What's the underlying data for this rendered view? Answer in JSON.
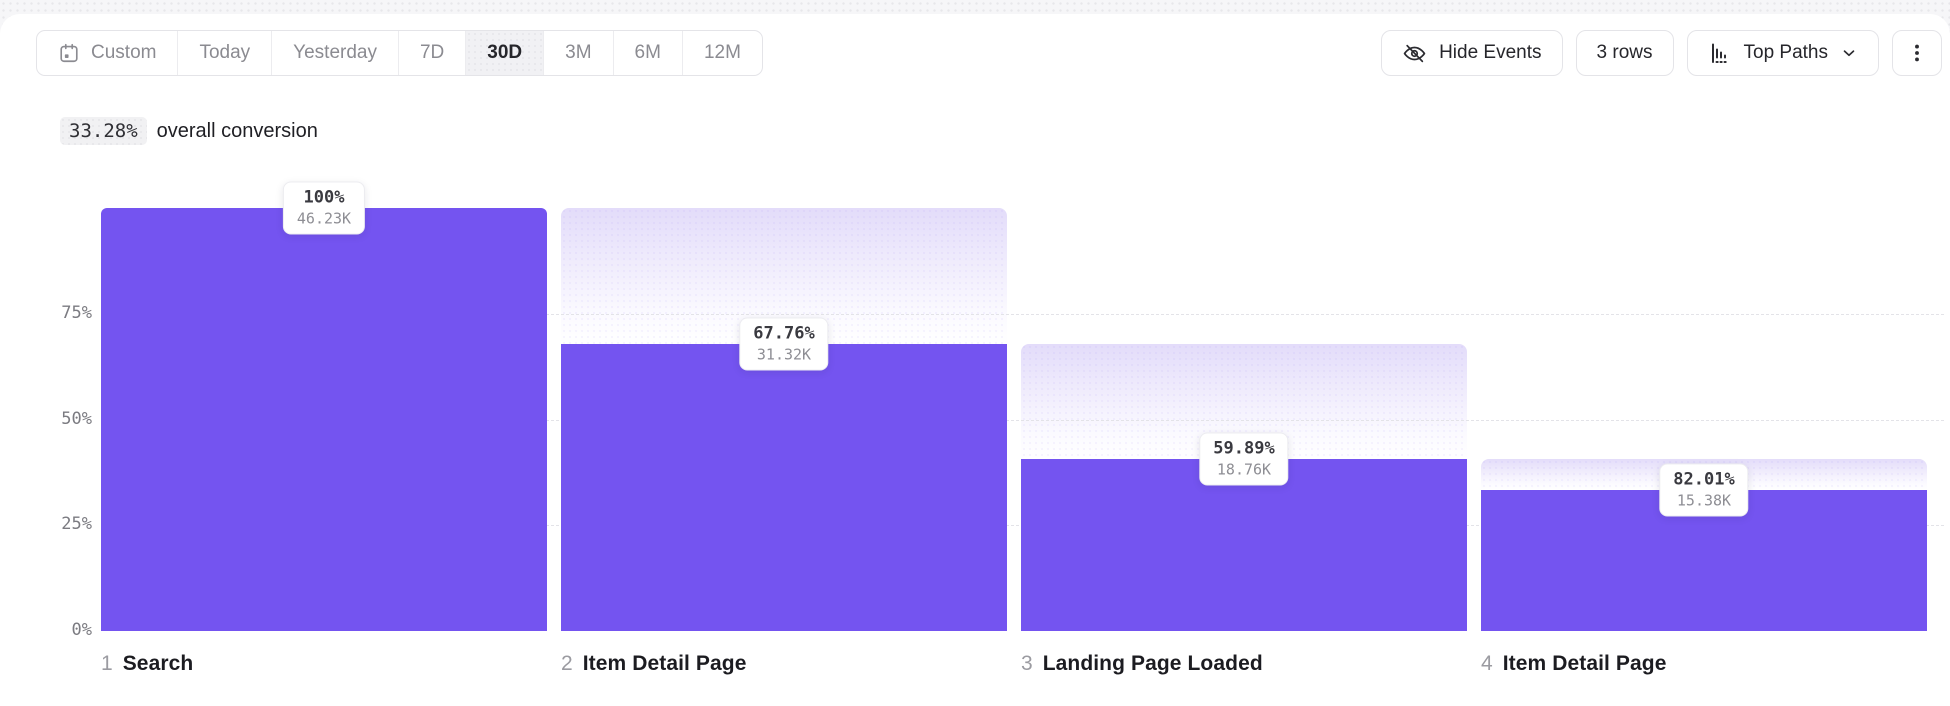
{
  "toolbar": {
    "date_ranges": [
      {
        "label": "Custom",
        "icon": "calendar-icon",
        "selected": false
      },
      {
        "label": "Today",
        "selected": false
      },
      {
        "label": "Yesterday",
        "selected": false
      },
      {
        "label": "7D",
        "selected": false
      },
      {
        "label": "30D",
        "selected": true
      },
      {
        "label": "3M",
        "selected": false
      },
      {
        "label": "6M",
        "selected": false
      },
      {
        "label": "12M",
        "selected": false
      }
    ],
    "hide_events_label": "Hide Events",
    "rows_label": "3 rows",
    "top_paths_label": "Top Paths"
  },
  "summary": {
    "overall_conversion": "33.28%",
    "text": "overall conversion"
  },
  "chart_data": {
    "type": "bar",
    "subtype": "funnel",
    "title": "Funnel conversion by step",
    "steps": [
      {
        "num": "1",
        "name": "Search",
        "step_conversion": "100%",
        "count": "46.23K",
        "overall_pct": 100
      },
      {
        "num": "2",
        "name": "Item Detail Page",
        "step_conversion": "67.76%",
        "count": "31.32K",
        "overall_pct": 67.76
      },
      {
        "num": "3",
        "name": "Landing Page Loaded",
        "step_conversion": "59.89%",
        "count": "18.76K",
        "overall_pct": 40.58
      },
      {
        "num": "4",
        "name": "Item Detail Page",
        "step_conversion": "82.01%",
        "count": "15.38K",
        "overall_pct": 33.27
      }
    ],
    "y_ticks": [
      {
        "label": "75%",
        "pct": 75
      },
      {
        "label": "50%",
        "pct": 50
      },
      {
        "label": "25%",
        "pct": 25
      },
      {
        "label": "0%",
        "pct": 0
      }
    ],
    "ylim": [
      0,
      100
    ],
    "grid": "horizontal-dashed",
    "legend": "none",
    "colors": {
      "bar": "#7454f0",
      "dropoff_gradient_top": "#e3dcfa",
      "gridline": "#e3e3e8",
      "tooltip_pct_text": "#3a3a40",
      "tooltip_count_text": "#8e8e94"
    }
  }
}
